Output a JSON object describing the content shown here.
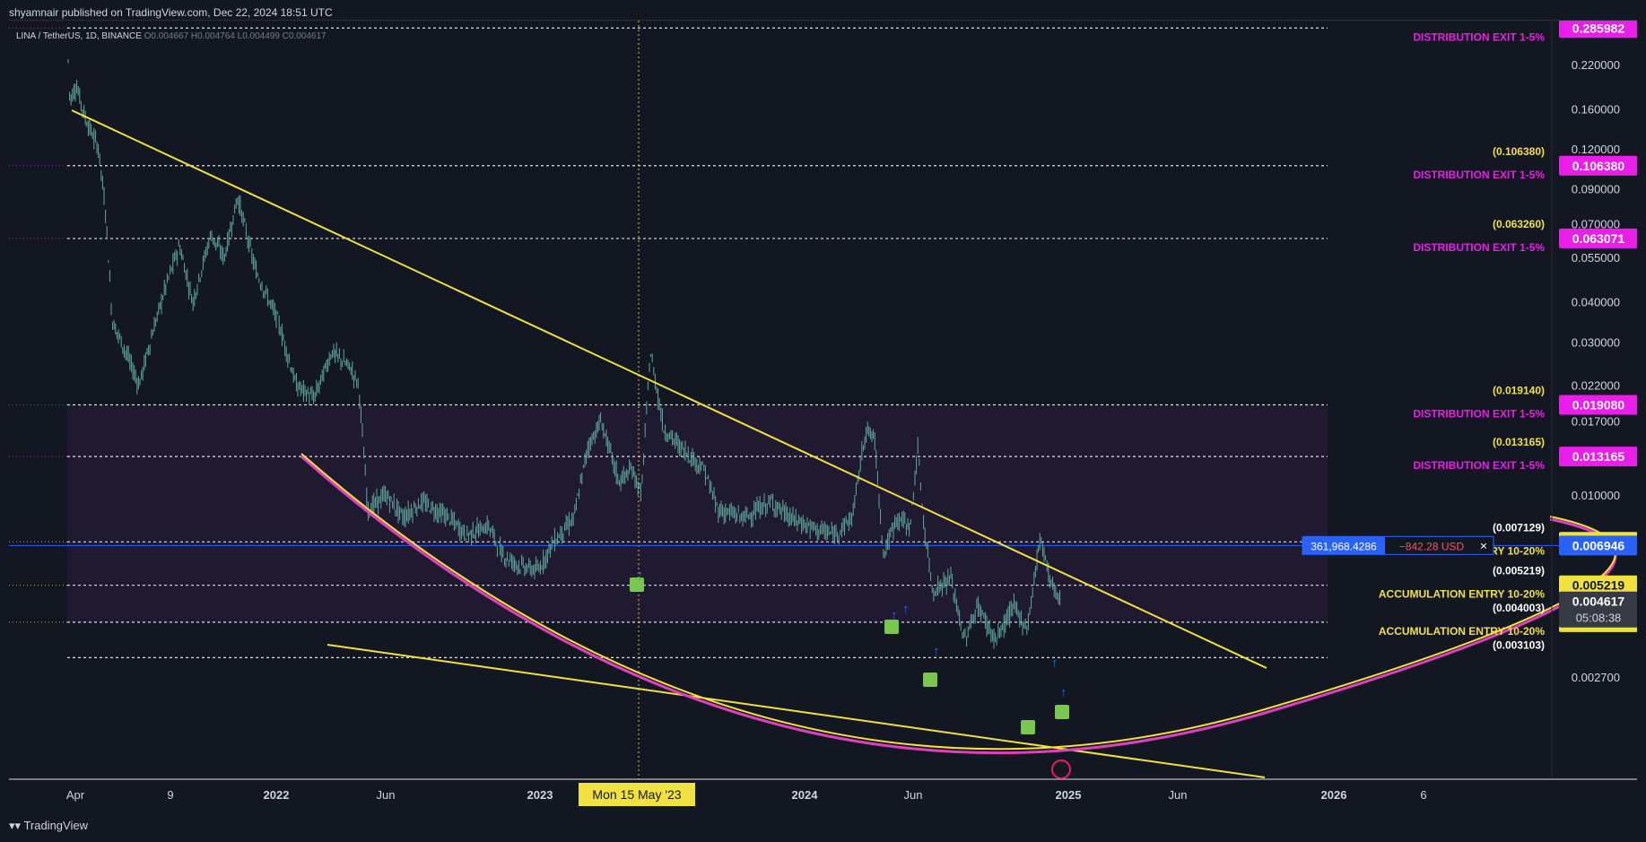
{
  "header": {
    "published": "shyamnair published on TradingView.com, Dec 22, 2024 18:51 UTC"
  },
  "legend": {
    "symbol": "LINA / TetherUS, 1D, BINANCE",
    "ohlc": "O0.004667 H0.004764 L0.004499 C0.004617"
  },
  "footer": {
    "brand": "TradingView"
  },
  "crosshair": {
    "date_label": "Mon 15 May '23"
  },
  "position": {
    "qty": "361,968.4286",
    "pnl": "−842.28 USD",
    "close_icon": "close-icon"
  },
  "colors": {
    "background": "#131722",
    "candle": "#5fa89e",
    "trendline": "#f0e040",
    "curve_inner": "#e040c0",
    "distribution": "#e91ee8",
    "accumulation": "#f0e040",
    "position_blue": "#2962ff"
  },
  "chart_data": {
    "type": "candlestick",
    "symbol": "LINA / TetherUS",
    "interval": "1D",
    "scale": "log",
    "x_ticks": [
      "Apr",
      "9",
      "2022",
      "Jun",
      "2023",
      "Jun",
      "2024",
      "Jun",
      "2025",
      "Jun",
      "2026",
      "6"
    ],
    "y_ticks": [
      0.22,
      0.16,
      0.12,
      0.09,
      0.07,
      0.055,
      0.04,
      0.03,
      0.022,
      0.017,
      0.01,
      0.0027
    ],
    "ylim": [
      0.0025,
      0.29
    ],
    "levels": [
      {
        "price": 0.285982,
        "label": "DISTRIBUTION EXIT 1-5%",
        "value_label": "0.285982",
        "color": "#e91ee8"
      },
      {
        "price": 0.10638,
        "label": "DISTRIBUTION EXIT 1-5%",
        "value_label": "0.106380",
        "bracket": "(0.106380)",
        "color": "#e91ee8"
      },
      {
        "price": 0.063071,
        "label": "DISTRIBUTION EXIT 1-5%",
        "value_label": "0.063071",
        "bracket": "(0.063260)",
        "color": "#e91ee8"
      },
      {
        "price": 0.01908,
        "label": "DISTRIBUTION EXIT 1-5%",
        "value_label": "0.019080",
        "bracket": "(0.019140)",
        "color": "#e91ee8"
      },
      {
        "price": 0.013165,
        "label": "DISTRIBUTION EXIT 1-5%",
        "value_label": "0.013165",
        "bracket": "(0.013165)",
        "color": "#e91ee8"
      },
      {
        "price": 0.007129,
        "label": "ACCUMULATION ENTRY 10-20%",
        "value_label": "0.007129",
        "bracket": "(0.007129)",
        "color": "#f0e040"
      },
      {
        "price": 0.005219,
        "label": "ACCUMULATION ENTRY 10-20%",
        "value_label": "0.005219",
        "bracket": "(0.005219)",
        "color": "#f0e040"
      },
      {
        "price": 0.004003,
        "label": "ACCUMULATION ENTRY 10-20%",
        "value_label": "0.004003",
        "bracket": "(0.004003)",
        "color": "#f0e040"
      }
    ],
    "extra_bracket": "(0.003103)",
    "position_price": {
      "value": 0.006946,
      "label": "0.006946"
    },
    "last_price": {
      "value": 0.004617,
      "label": "0.004617",
      "countdown": "05:08:38"
    }
  }
}
